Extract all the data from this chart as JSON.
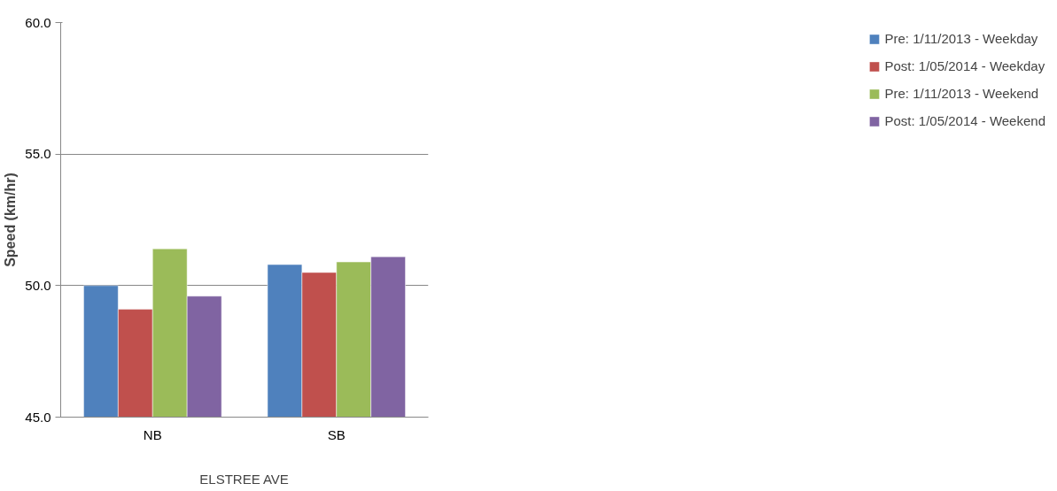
{
  "chart_data": {
    "type": "bar",
    "xlabel": "ELSTREE AVE",
    "ylabel": "Speed (km/hr)",
    "categories": [
      "NB",
      "SB"
    ],
    "series": [
      {
        "name": "Pre: 1/11/2013 - Weekday",
        "color": "#4f81bd",
        "values": [
          50.0,
          50.8
        ]
      },
      {
        "name": "Post: 1/05/2014 - Weekday",
        "color": "#c0504d",
        "values": [
          49.1,
          50.5
        ]
      },
      {
        "name": "Pre: 1/11/2013 - Weekend",
        "color": "#9bbb59",
        "values": [
          51.4,
          50.9
        ]
      },
      {
        "name": "Post: 1/05/2014 - Weekend",
        "color": "#8064a2",
        "values": [
          49.6,
          51.1
        ]
      }
    ],
    "ylim": [
      45,
      60
    ],
    "yticks": [
      {
        "value": 45,
        "label": "45.0"
      },
      {
        "value": 50,
        "label": "50.0"
      },
      {
        "value": 55,
        "label": "55.0"
      },
      {
        "value": 60,
        "label": "60.0"
      }
    ],
    "grid": "y",
    "legend": "right"
  }
}
